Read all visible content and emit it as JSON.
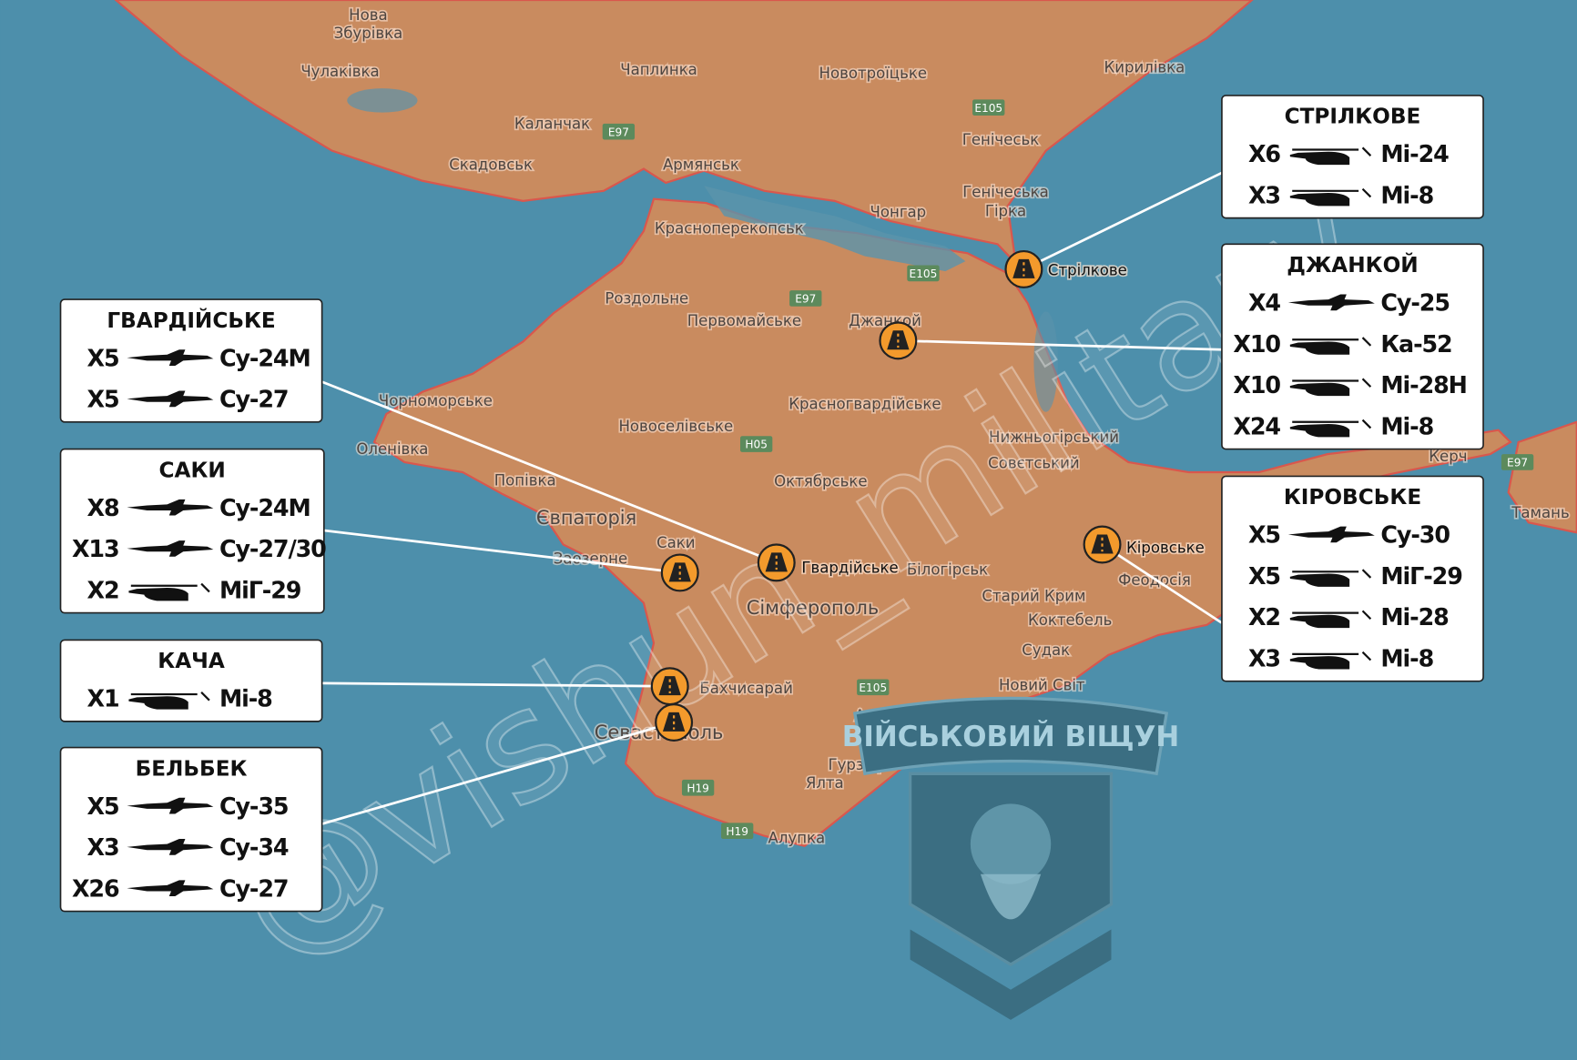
{
  "map_labels": [
    "Нова",
    "Збурівка",
    "Чулаківка",
    "Чаплинка",
    "Новотроїцьке",
    "Кирилівка",
    "Каланчак",
    "Армянськ",
    "Генічеськ",
    "Скадовськ",
    "Генічеська",
    "Гірка",
    "Чонгар",
    "Красноперекопськ",
    "Роздольне",
    "Первомайське",
    "Джанкой",
    "Чорноморське",
    "Оленівка",
    "Новоселівське",
    "Красногвардійське",
    "Нижньогірський",
    "Совєтський",
    "Октябрське",
    "Попівка",
    "Євпаторія",
    "Саки",
    "Заозерне",
    "Білогірськ",
    "Сімферополь",
    "Старий Крим",
    "Коктебель",
    "Феодосія",
    "Судак",
    "Бахчисарай",
    "Новий Світ",
    "Алушта",
    "Севастополь",
    "Гурзуф",
    "Ялта",
    "Алупка",
    "Керч",
    "Тамань"
  ],
  "road_labels": [
    "E97",
    "E105",
    "E105",
    "E97",
    "H05",
    "E105",
    "H19",
    "H19",
    "E97"
  ],
  "marker_labels": [
    "Стрілкове",
    "Гвардійське",
    "Кіровське"
  ],
  "airfields": [
    {
      "title": "СТРІЛКОВЕ",
      "rows": [
        {
          "count": "X6",
          "aircraft": "Мі-24"
        },
        {
          "count": "X3",
          "aircraft": "Мі-8"
        }
      ]
    },
    {
      "title": "ДЖАНКОЙ",
      "rows": [
        {
          "count": "X4",
          "aircraft": "Су-25"
        },
        {
          "count": "X10",
          "aircraft": "Ка-52"
        },
        {
          "count": "X10",
          "aircraft": "Мі-28Н"
        },
        {
          "count": "X24",
          "aircraft": "Мі-8"
        }
      ]
    },
    {
      "title": "КІРОВСЬКЕ",
      "rows": [
        {
          "count": "X5",
          "aircraft": "Су-30"
        },
        {
          "count": "X5",
          "aircraft": "МіГ-29"
        },
        {
          "count": "X2",
          "aircraft": "Мі-28"
        },
        {
          "count": "X3",
          "aircraft": "Мі-8"
        }
      ]
    },
    {
      "title": "ГВАРДІЙСЬКЕ",
      "rows": [
        {
          "count": "X5",
          "aircraft": "Су-24М"
        },
        {
          "count": "X5",
          "aircraft": "Су-27"
        }
      ]
    },
    {
      "title": "САКИ",
      "rows": [
        {
          "count": "X8",
          "aircraft": "Су-24М"
        },
        {
          "count": "X13",
          "aircraft": "Су-27/30"
        },
        {
          "count": "X2",
          "aircraft": "МіГ-29"
        }
      ]
    },
    {
      "title": "КАЧА",
      "rows": [
        {
          "count": "X1",
          "aircraft": "Мі-8"
        }
      ]
    },
    {
      "title": "БЕЛЬБЕК",
      "rows": [
        {
          "count": "X5",
          "aircraft": "Су-35"
        },
        {
          "count": "X3",
          "aircraft": "Су-34"
        },
        {
          "count": "X26",
          "aircraft": "Су-27"
        }
      ]
    }
  ],
  "watermark": "@vishun_military",
  "logo": "ВІЙСЬКОВИЙ ВІЩУН"
}
